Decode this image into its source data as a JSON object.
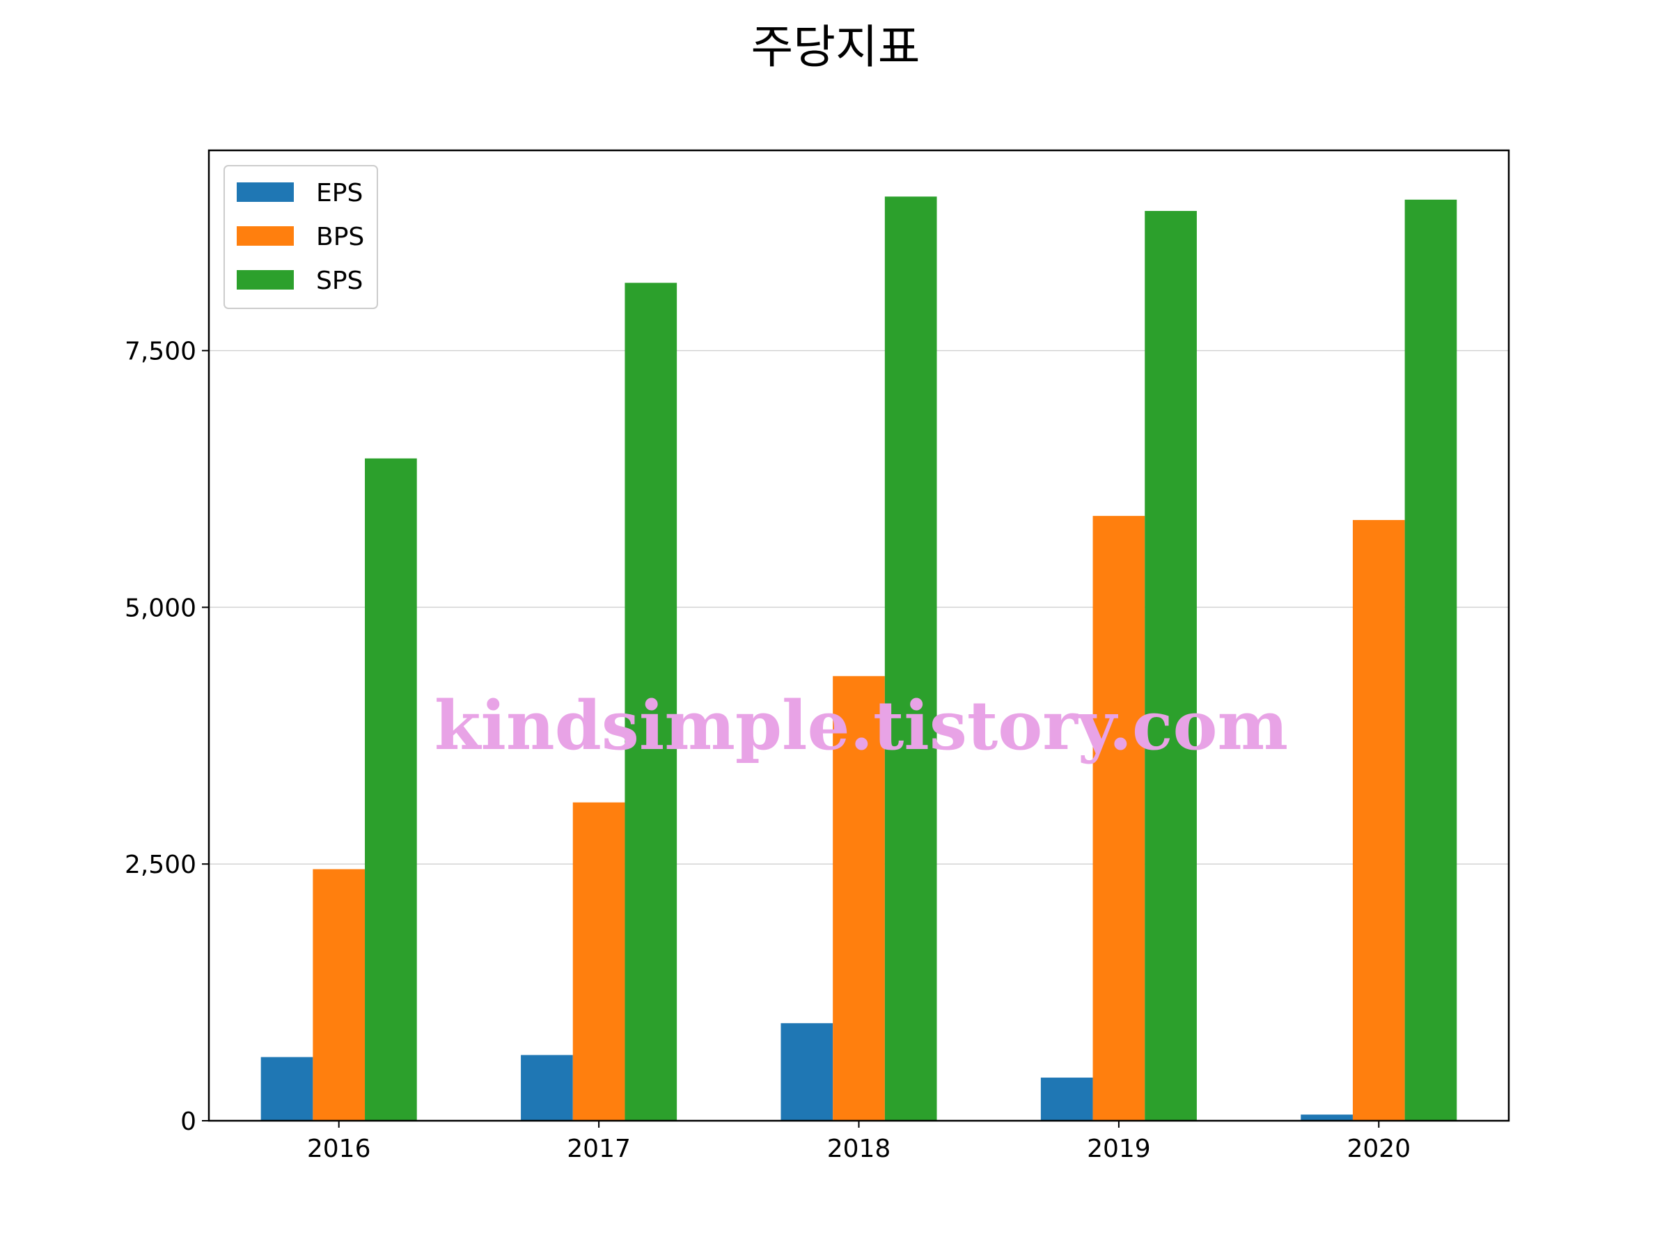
{
  "chart_data": {
    "type": "bar",
    "title": "주당지표",
    "xlabel": "",
    "ylabel": "",
    "categories": [
      "2016",
      "2017",
      "2018",
      "2019",
      "2020"
    ],
    "series": [
      {
        "name": "EPS",
        "color": "#1f77b4",
        "values": [
          620,
          640,
          950,
          420,
          60
        ]
      },
      {
        "name": "BPS",
        "color": "#ff7f0e",
        "values": [
          2450,
          3100,
          4330,
          5890,
          5850
        ]
      },
      {
        "name": "SPS",
        "color": "#2ca02c",
        "values": [
          6450,
          8160,
          9000,
          8860,
          8970
        ]
      }
    ],
    "ylim": [
      0,
      9450
    ],
    "yticks": [
      0,
      2500,
      5000,
      7500
    ],
    "ytick_labels": [
      "0",
      "2,500",
      "5,000",
      "7,500"
    ],
    "grid": "y",
    "legend_position": "upper left"
  },
  "watermark": "kindsimple.tistory.com"
}
